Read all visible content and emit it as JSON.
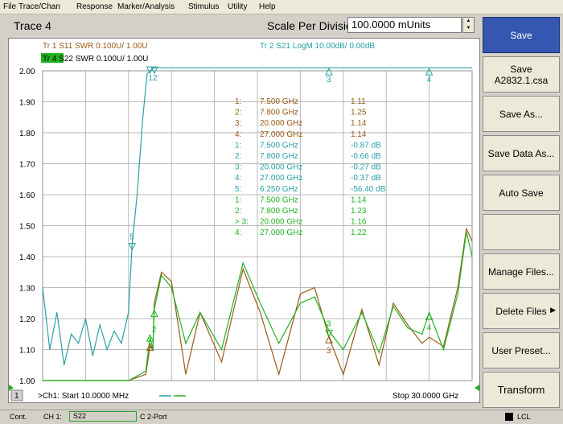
{
  "menu": [
    "File",
    "Trace/Chan",
    "Response",
    "Marker/Analysis",
    "Stimulus",
    "Utility",
    "Help"
  ],
  "toolbar": {
    "trace_title": "Trace 4",
    "scale_label": "Scale Per Division",
    "scale_value": "100.0000 mUnits",
    "stepper_up": "▲",
    "stepper_down": "▼"
  },
  "chart": {
    "traces": [
      {
        "id": "tr1",
        "text": "Tr  1  S11 SWR 0.100U/  1.00U",
        "color": "#9a5a17"
      },
      {
        "id": "tr4",
        "text": "Tr  4  S22 SWR 0.100U/  1.00U",
        "color": "#22b222"
      },
      {
        "id": "tr2",
        "text": "Tr  2  S21 LogM 10.00dB/  0.00dB",
        "color": "#2aa0a6"
      }
    ],
    "y_ticks": [
      "2.00",
      "1.90",
      "1.80",
      "1.70",
      "1.60",
      "1.50",
      "1.40",
      "1.30",
      "1.20",
      "1.10",
      "1.00"
    ],
    "channel_num": "1",
    "start_text": ">Ch1: Start  10.0000 MHz",
    "stop_text": "Stop  30.0000 GHz",
    "marker_table": [
      {
        "n": "1:",
        "f": "7.500 GHz",
        "v": "1.11",
        "color": "#9a5a17"
      },
      {
        "n": "2:",
        "f": "7.800 GHz",
        "v": "1.25",
        "color": "#9a5a17"
      },
      {
        "n": "3:",
        "f": "20.000 GHz",
        "v": "1.14",
        "color": "#9a5a17"
      },
      {
        "n": "4:",
        "f": "27.000 GHz",
        "v": "1.14",
        "color": "#9a5a17"
      },
      {
        "n": "1:",
        "f": "7.500 GHz",
        "v": "-0.87 dB",
        "color": "#2aa0a6"
      },
      {
        "n": "2:",
        "f": "7.800 GHz",
        "v": "-0.66 dB",
        "color": "#2aa0a6"
      },
      {
        "n": "3:",
        "f": "20.000 GHz",
        "v": "-0.27 dB",
        "color": "#2aa0a6"
      },
      {
        "n": "4:",
        "f": "27.000 GHz",
        "v": "-0.37 dB",
        "color": "#2aa0a6"
      },
      {
        "n": "5:",
        "f": "6.250 GHz",
        "v": "-56.40 dB",
        "color": "#2aa0a6"
      },
      {
        "n": "1:",
        "f": "7.500 GHz",
        "v": "1.14",
        "color": "#22b222"
      },
      {
        "n": "2:",
        "f": "7.800 GHz",
        "v": "1.23",
        "color": "#22b222"
      },
      {
        "n": "> 3:",
        "f": "20.000 GHz",
        "v": "1.16",
        "color": "#22b222"
      },
      {
        "n": "4:",
        "f": "27.000 GHz",
        "v": "1.22",
        "color": "#22b222"
      }
    ],
    "marker_labels": {
      "top12": "12",
      "top3": "3",
      "top4": "4",
      "m5": "5",
      "g2": "2",
      "g3": "3",
      "g4": "4",
      "b3": "3"
    }
  },
  "chart_data": {
    "type": "line",
    "xlabel": "",
    "ylabel": "",
    "x_range_ghz": [
      0.01,
      30.0
    ],
    "ylim": [
      1.0,
      2.0
    ],
    "grid": true,
    "series": [
      {
        "name": "Tr 1 S11 SWR",
        "color": "#9a5a17",
        "x": [
          0,
          6.0,
          7.2,
          7.5,
          7.7,
          7.8,
          8.3,
          9.0,
          10.0,
          11.0,
          12.5,
          14.0,
          15.2,
          16.5,
          18.0,
          19.0,
          20.0,
          21.0,
          22.3,
          23.5,
          24.5,
          25.5,
          26.5,
          27.0,
          28.0,
          29.0,
          29.6,
          30.0
        ],
        "y": [
          1.0,
          1.0,
          1.02,
          1.11,
          1.1,
          1.25,
          1.35,
          1.32,
          1.02,
          1.22,
          1.06,
          1.36,
          1.22,
          1.02,
          1.28,
          1.3,
          1.14,
          1.02,
          1.23,
          1.05,
          1.25,
          1.18,
          1.12,
          1.14,
          1.11,
          1.3,
          1.49,
          1.45
        ]
      },
      {
        "name": "Tr 4 S22 SWR",
        "color": "#22b222",
        "x": [
          0,
          6.0,
          7.2,
          7.5,
          7.7,
          7.8,
          8.3,
          9.0,
          10.0,
          11.0,
          12.5,
          14.0,
          15.2,
          16.5,
          18.0,
          19.0,
          20.0,
          21.0,
          22.3,
          23.5,
          24.5,
          25.5,
          26.5,
          27.0,
          28.0,
          29.0,
          29.6,
          30.0
        ],
        "y": [
          1.0,
          1.0,
          1.03,
          1.14,
          1.1,
          1.23,
          1.34,
          1.3,
          1.12,
          1.22,
          1.1,
          1.38,
          1.25,
          1.12,
          1.25,
          1.27,
          1.16,
          1.1,
          1.22,
          1.09,
          1.24,
          1.17,
          1.15,
          1.22,
          1.1,
          1.28,
          1.48,
          1.4
        ]
      },
      {
        "name": "Tr 2 S21 LogM",
        "color": "#2aa0a6",
        "x": [
          0,
          0.5,
          1,
          1.5,
          2,
          2.5,
          3,
          3.5,
          4,
          4.5,
          5,
          5.5,
          6.0,
          6.25,
          6.6,
          7.0,
          7.3,
          7.5,
          7.8,
          10,
          15,
          20,
          27,
          30
        ],
        "y": [
          1.3,
          1.1,
          1.22,
          1.05,
          1.15,
          1.12,
          1.2,
          1.08,
          1.18,
          1.1,
          1.16,
          1.12,
          1.22,
          1.44,
          1.6,
          1.85,
          1.99,
          2.0,
          2.01,
          2.01,
          2.01,
          2.01,
          2.01,
          2.01
        ]
      }
    ]
  },
  "softkeys": [
    {
      "id": "save",
      "label": "Save",
      "sub": "",
      "active": true
    },
    {
      "id": "save-file",
      "label": "Save",
      "sub": "A2832.1.csa",
      "active": false
    },
    {
      "id": "save-as",
      "label": "Save As...",
      "sub": "",
      "active": false
    },
    {
      "id": "save-data-as",
      "label": "Save Data As...",
      "sub": "",
      "active": false
    },
    {
      "id": "auto-save",
      "label": "Auto Save",
      "sub": "",
      "active": false
    },
    {
      "id": "blank",
      "label": "",
      "sub": "",
      "active": false
    },
    {
      "id": "manage-files",
      "label": "Manage Files...",
      "sub": "",
      "active": false
    },
    {
      "id": "delete-files",
      "label": "Delete Files",
      "sub": "",
      "active": false,
      "arrow": "▶"
    },
    {
      "id": "user-preset",
      "label": "User Preset...",
      "sub": "",
      "active": false
    },
    {
      "id": "transform",
      "label": "Transform",
      "sub": "",
      "active": false
    }
  ],
  "status": {
    "cont": "Cont.",
    "ch": "CH 1:",
    "param": "S22",
    "port": "C  2-Port",
    "lcl": "LCL"
  }
}
